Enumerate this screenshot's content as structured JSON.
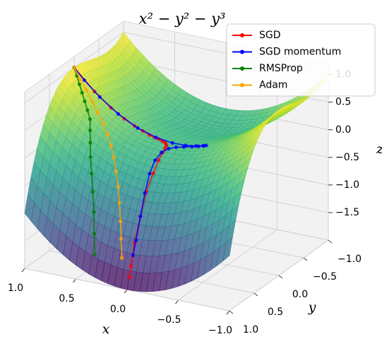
{
  "chart_data": {
    "type": "surface3d",
    "title": "x² − y² − y³",
    "xlabel": "x",
    "ylabel": "y",
    "zlabel": "z",
    "xlim": [
      -1,
      1
    ],
    "ylim": [
      -1,
      1
    ],
    "zlim": [
      -2,
      1.2
    ],
    "xticks": [
      {
        "value": 1.0,
        "label": "1.0"
      },
      0.5,
      {
        "value": 0.0,
        "label": "0.0"
      },
      {
        "value": -0.5,
        "label": "−0.5"
      },
      {
        "value": -1.0,
        "label": "−1.0"
      }
    ],
    "yticks": [
      {
        "value": -1.0,
        "label": "−1.0"
      },
      {
        "value": -0.5,
        "label": "−0.5"
      },
      {
        "value": 0.0,
        "label": "0.0"
      },
      0.5,
      {
        "value": 1.0,
        "label": "1.0"
      }
    ],
    "zticks": [
      {
        "value": 1.0,
        "label": "1.0"
      },
      0.5,
      {
        "value": 0.0,
        "label": "0.0"
      },
      {
        "value": -0.5,
        "label": "−0.5"
      },
      {
        "value": -1.0,
        "label": "−1.0"
      },
      {
        "value": -1.5,
        "label": "−1.5"
      }
    ],
    "grid": true,
    "legend": "upper right",
    "series": [
      {
        "name": "SGD",
        "color": "#ff0000",
        "x": [
          1.0,
          0.8,
          0.64,
          0.51,
          0.41,
          0.33,
          0.26,
          0.21,
          0.17,
          0.13,
          0.1,
          0.08,
          0.06,
          0.05,
          0.04,
          0.03,
          0.02,
          0.02,
          0.01,
          0.01,
          0.0,
          0.0
        ],
        "y": [
          0.0,
          0.0,
          0.0,
          0.0,
          0.0,
          0.0,
          0.01,
          0.01,
          0.01,
          0.02,
          0.03,
          0.05,
          0.08,
          0.13,
          0.2,
          0.3,
          0.43,
          0.57,
          0.71,
          0.83,
          0.92,
          0.96
        ],
        "z": [
          1.0,
          0.64,
          0.41,
          0.26,
          0.168,
          0.109,
          0.068,
          0.044,
          0.029,
          0.017,
          0.009,
          0.004,
          -0.003,
          -0.017,
          -0.046,
          -0.116,
          -0.264,
          -0.51,
          -0.862,
          -1.261,
          -1.625,
          -1.806
        ]
      },
      {
        "name": "SGD momentum",
        "color": "#0000ff",
        "x": [
          1.0,
          0.9,
          0.75,
          0.57,
          0.38,
          0.2,
          0.04,
          -0.09,
          -0.19,
          -0.26,
          -0.29,
          -0.27,
          -0.22,
          -0.16,
          -0.09,
          -0.03,
          0.02,
          0.05,
          0.06,
          0.05,
          0.03,
          0.01,
          0.0,
          0.0
        ],
        "y": [
          0.0,
          0.0,
          0.0,
          0.0,
          0.0,
          0.0,
          0.0,
          0.0,
          0.0,
          0.0,
          0.0,
          0.01,
          0.01,
          0.02,
          0.04,
          0.07,
          0.12,
          0.2,
          0.31,
          0.44,
          0.58,
          0.71,
          0.82,
          0.88
        ],
        "z": [
          1.0,
          0.81,
          0.563,
          0.325,
          0.144,
          0.04,
          0.002,
          0.008,
          0.036,
          0.068,
          0.084,
          0.073,
          0.048,
          0.025,
          0.006,
          -0.004,
          -0.016,
          -0.046,
          -0.122,
          -0.276,
          -0.531,
          -0.862,
          -1.224,
          -1.456
        ]
      },
      {
        "name": "RMSProp",
        "color": "#008000",
        "x": [
          1.0,
          0.95,
          0.9,
          0.85,
          0.8,
          0.75,
          0.7,
          0.66,
          0.62,
          0.58,
          0.53,
          0.48,
          0.43,
          0.39,
          0.35
        ],
        "y": [
          0.0,
          0.05,
          0.1,
          0.15,
          0.2,
          0.25,
          0.3,
          0.38,
          0.46,
          0.54,
          0.62,
          0.7,
          0.78,
          0.86,
          0.93
        ],
        "z": [
          1.0,
          0.9,
          0.799,
          0.697,
          0.592,
          0.484,
          0.373,
          0.236,
          0.076,
          -0.113,
          -0.342,
          -0.603,
          -0.898,
          -1.224,
          -1.547
        ]
      },
      {
        "name": "Adam",
        "color": "#ffa500",
        "x": [
          1.0,
          0.92,
          0.84,
          0.76,
          0.68,
          0.6,
          0.53,
          0.46,
          0.4,
          0.34,
          0.28,
          0.23,
          0.18,
          0.14,
          0.1
        ],
        "y": [
          0.0,
          0.04,
          0.08,
          0.13,
          0.18,
          0.24,
          0.3,
          0.37,
          0.44,
          0.52,
          0.6,
          0.68,
          0.76,
          0.83,
          0.9
        ],
        "z": [
          1.0,
          0.845,
          0.699,
          0.559,
          0.424,
          0.289,
          0.164,
          0.024,
          -0.119,
          -0.295,
          -0.498,
          -0.724,
          -0.984,
          -1.241,
          -1.529
        ]
      }
    ]
  }
}
